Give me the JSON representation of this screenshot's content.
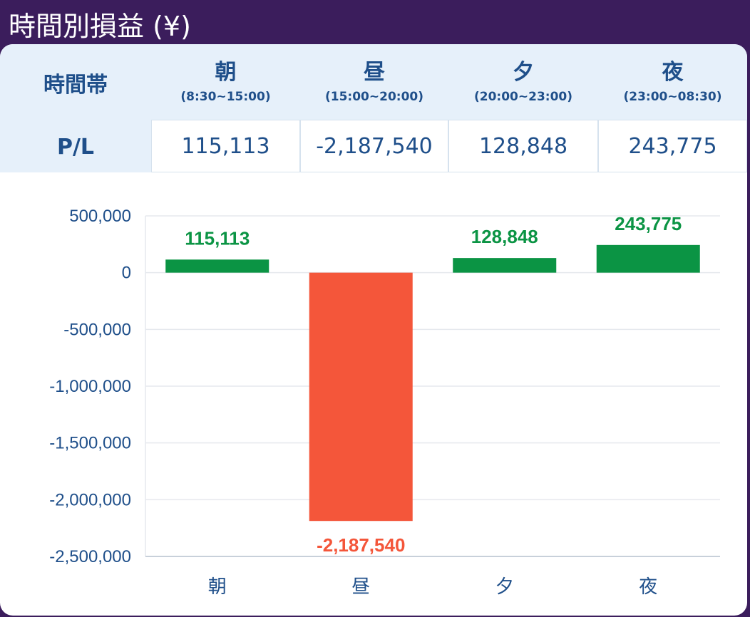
{
  "title": "時間別損益 (¥)",
  "table": {
    "header_label": "時間帯",
    "row_label": "P/L",
    "columns": [
      {
        "name": "朝",
        "range": "(8:30~15:00)",
        "value": "115,113"
      },
      {
        "name": "昼",
        "range": "(15:00~20:00)",
        "value": "-2,187,540"
      },
      {
        "name": "夕",
        "range": "(20:00~23:00)",
        "value": "128,848"
      },
      {
        "name": "夜",
        "range": "(23:00~08:30)",
        "value": "243,775"
      }
    ]
  },
  "colors": {
    "positive": "#0b9444",
    "negative": "#f4563a",
    "header_bg": "#3b1d5c",
    "text": "#1f4f8a"
  },
  "chart_data": {
    "type": "bar",
    "categories": [
      "朝",
      "昼",
      "夕",
      "夜"
    ],
    "values": [
      115113,
      -2187540,
      128848,
      243775
    ],
    "data_labels": [
      "115,113",
      "-2,187,540",
      "128,848",
      "243,775"
    ],
    "ylim": [
      -2500000,
      500000
    ],
    "yticks": [
      500000,
      0,
      -500000,
      -1000000,
      -1500000,
      -2000000,
      -2500000
    ],
    "ytick_labels": [
      "500,000",
      "0",
      "-500,000",
      "-1,000,000",
      "-1,500,000",
      "-2,000,000",
      "-2,500,000"
    ],
    "grid": true
  }
}
